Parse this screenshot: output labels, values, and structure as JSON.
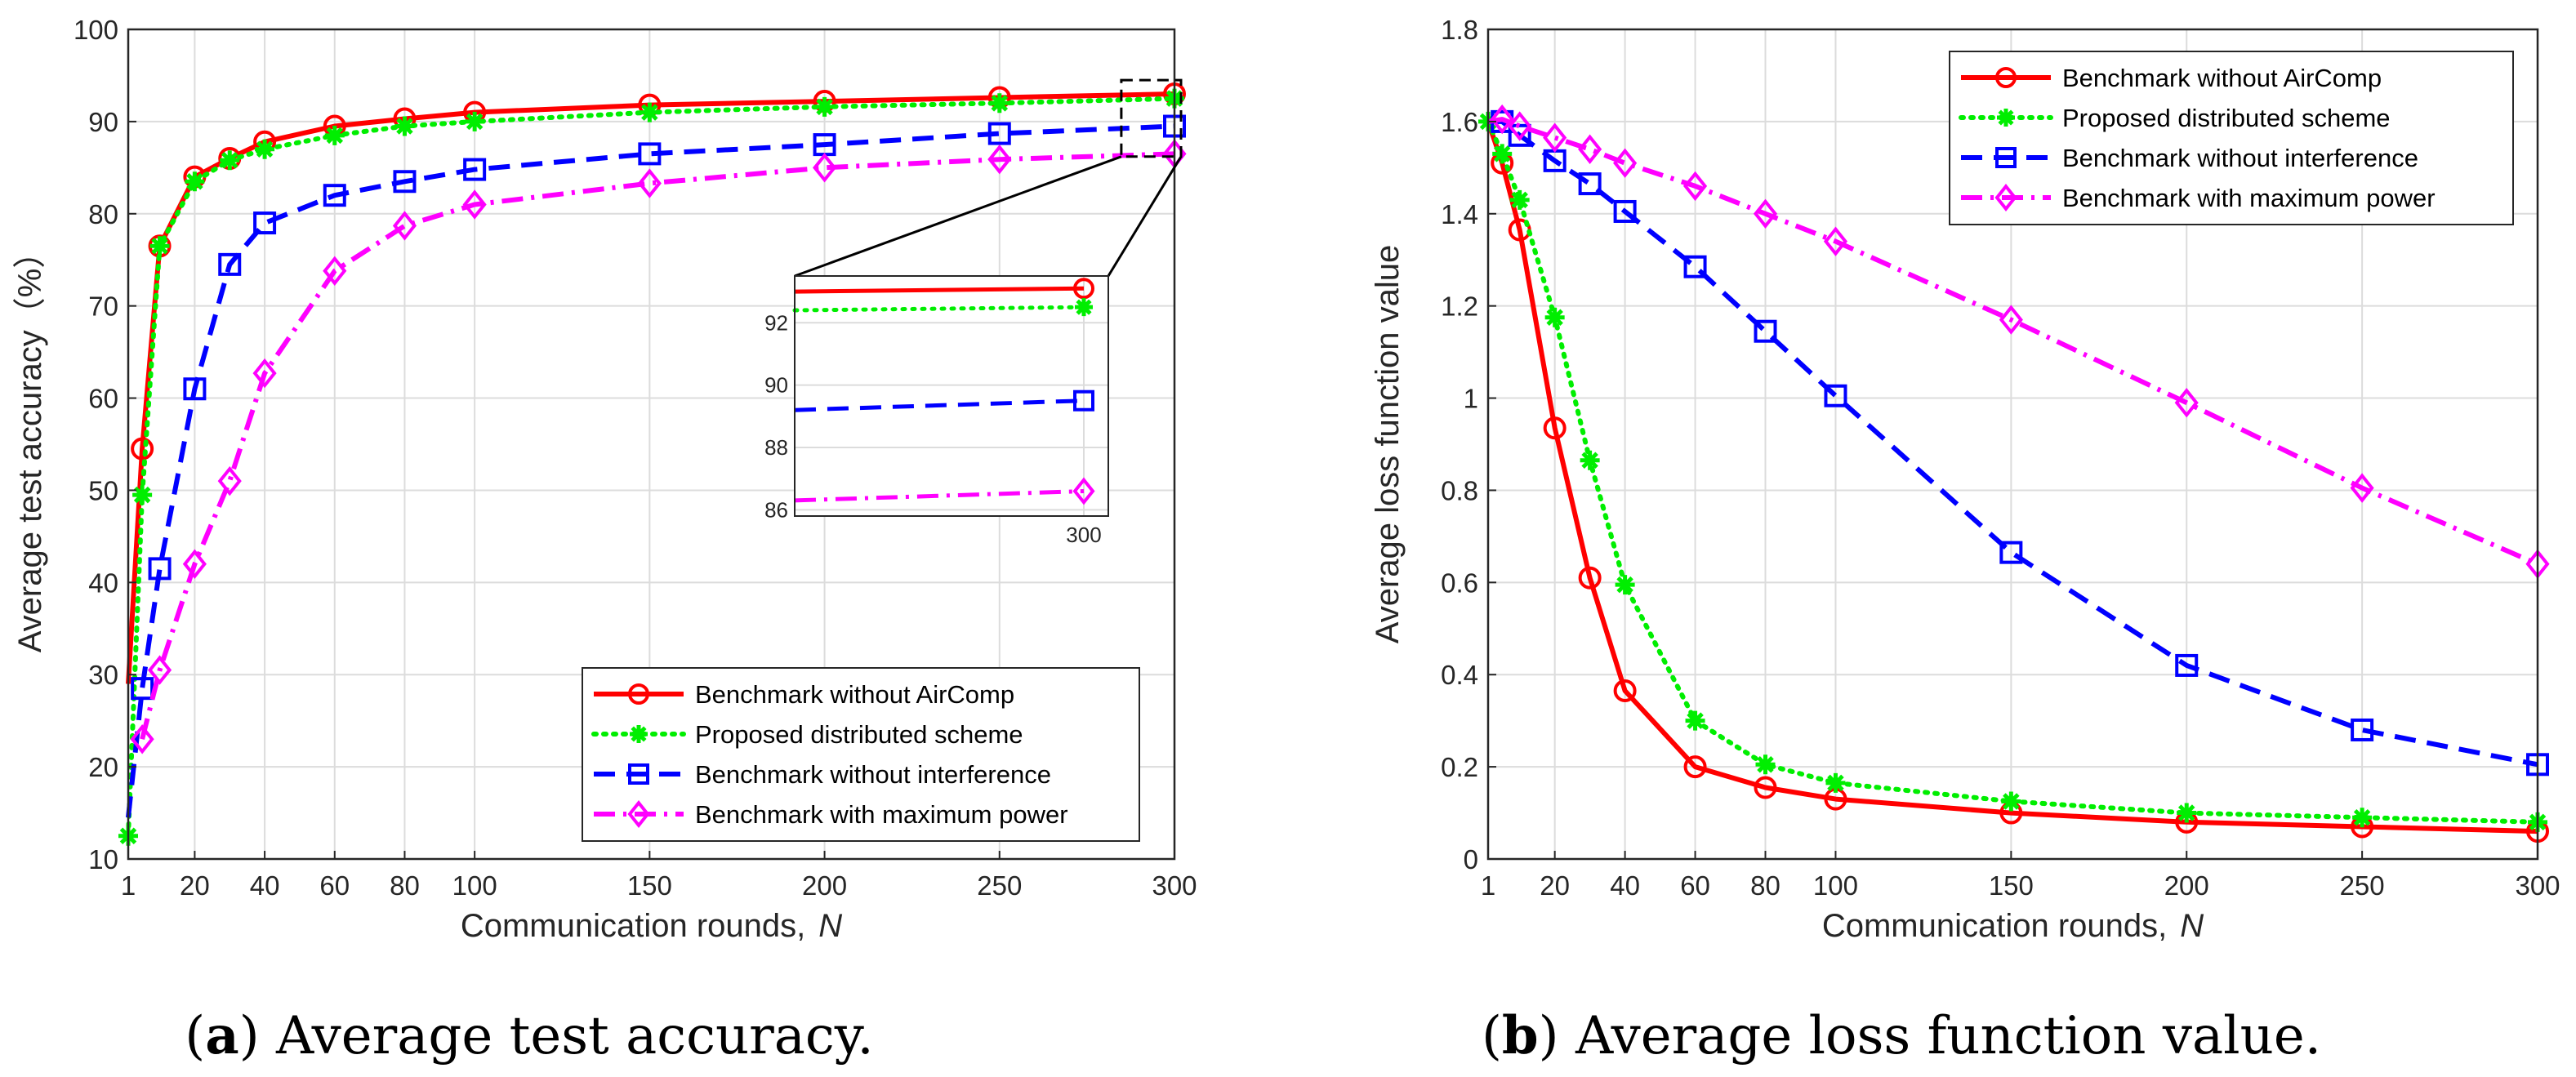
{
  "colors": {
    "red": "#ff0000",
    "green": "#00ee00",
    "blue": "#0000ff",
    "magenta": "#ff00ff"
  },
  "captions": [
    {
      "letter": "a",
      "text": " Average test accuracy."
    },
    {
      "letter": "b",
      "text": " Average loss function value."
    }
  ],
  "chart_data": [
    {
      "type": "line",
      "xlabel": "Communication rounds,",
      "xlabel_var": "N",
      "ylabel": "Average test accuracy（%）",
      "xlim": [
        1,
        300
      ],
      "ylim": [
        10,
        100
      ],
      "xticks": [
        1,
        20,
        40,
        60,
        80,
        100,
        150,
        200,
        250,
        300
      ],
      "yticks": [
        10,
        20,
        30,
        40,
        50,
        60,
        70,
        80,
        90,
        100
      ],
      "grid": true,
      "legend_position": "bottom-right",
      "series": [
        {
          "name": "Benchmark without AirComp",
          "color": "red",
          "dash": "solid",
          "marker": "circle",
          "x": [
            1,
            5,
            10,
            20,
            30,
            40,
            60,
            80,
            100,
            150,
            200,
            250,
            300
          ],
          "y": [
            29,
            54.5,
            76.5,
            84,
            86,
            87.8,
            89.5,
            90.3,
            91,
            91.8,
            92.2,
            92.6,
            93
          ]
        },
        {
          "name": "Proposed distributed scheme",
          "color": "green",
          "dash": "dot",
          "marker": "asterisk",
          "x": [
            1,
            5,
            10,
            20,
            30,
            40,
            60,
            80,
            100,
            150,
            200,
            250,
            300
          ],
          "y": [
            12.5,
            49.5,
            76.5,
            83.5,
            85.8,
            87,
            88.5,
            89.5,
            90,
            91,
            91.6,
            92,
            92.5
          ]
        },
        {
          "name": "Benchmark without interference",
          "color": "blue",
          "dash": "dash",
          "marker": "square",
          "x": [
            1,
            5,
            10,
            20,
            30,
            40,
            60,
            80,
            100,
            150,
            200,
            250,
            300
          ],
          "y": [
            14.5,
            28.5,
            41.5,
            61,
            74.5,
            79,
            82,
            83.5,
            84.8,
            86.5,
            87.5,
            88.7,
            89.5
          ]
        },
        {
          "name": "Benchmark with maximum power",
          "color": "magenta",
          "dash": "dashdot",
          "marker": "diamond",
          "x": [
            5,
            10,
            20,
            30,
            40,
            60,
            80,
            100,
            150,
            200,
            250,
            300
          ],
          "y": [
            23,
            30.5,
            42,
            51,
            62.7,
            73.8,
            78.7,
            81,
            83.3,
            85,
            85.9,
            86.5
          ]
        }
      ],
      "inset": {
        "x_domain": [
          275,
          300
        ],
        "ylim": [
          85.8,
          93.5
        ],
        "xticks": [
          300
        ],
        "yticks": [
          86,
          88,
          90,
          92
        ],
        "series": [
          {
            "color": "red",
            "dash": "solid",
            "marker": "circle",
            "x": [
              275,
              300
            ],
            "y": [
              93,
              93.1
            ]
          },
          {
            "color": "green",
            "dash": "dot",
            "marker": "asterisk",
            "x": [
              275,
              300
            ],
            "y": [
              92.4,
              92.5
            ]
          },
          {
            "color": "blue",
            "dash": "dash",
            "marker": "square",
            "x": [
              275,
              300
            ],
            "y": [
              89.2,
              89.5
            ]
          },
          {
            "color": "magenta",
            "dash": "dashdot",
            "marker": "diamond",
            "x": [
              275,
              300
            ],
            "y": [
              86.3,
              86.6
            ]
          }
        ]
      }
    },
    {
      "type": "line",
      "xlabel": "Communication rounds,",
      "xlabel_var": "N",
      "ylabel": "Average loss function value",
      "xlim": [
        1,
        300
      ],
      "ylim": [
        0,
        1.8
      ],
      "xticks": [
        1,
        20,
        40,
        60,
        80,
        100,
        150,
        200,
        250,
        300
      ],
      "yticks": [
        0,
        0.2,
        0.4,
        0.6,
        0.8,
        1,
        1.2,
        1.4,
        1.6,
        1.8
      ],
      "ytick_labels": [
        "0",
        "0.2",
        "0.4",
        "0.6",
        "0.8",
        "1",
        "1.2",
        "1.4",
        "1.6",
        "1.8"
      ],
      "grid": true,
      "legend_position": "top-right",
      "series": [
        {
          "name": "Benchmark without AirComp",
          "color": "red",
          "dash": "solid",
          "marker": "circle",
          "x": [
            1,
            5,
            10,
            20,
            30,
            40,
            60,
            80,
            100,
            150,
            200,
            250,
            300
          ],
          "y": [
            1.6,
            1.51,
            1.365,
            0.935,
            0.61,
            0.365,
            0.2,
            0.155,
            0.13,
            0.1,
            0.08,
            0.07,
            0.06
          ]
        },
        {
          "name": "Proposed distributed scheme",
          "color": "green",
          "dash": "dot",
          "marker": "asterisk",
          "x": [
            1,
            5,
            10,
            20,
            30,
            40,
            60,
            80,
            100,
            150,
            200,
            250,
            300
          ],
          "y": [
            1.6,
            1.53,
            1.43,
            1.175,
            0.865,
            0.595,
            0.3,
            0.205,
            0.165,
            0.125,
            0.1,
            0.09,
            0.08
          ]
        },
        {
          "name": "Benchmark without interference",
          "color": "blue",
          "dash": "dash",
          "marker": "square",
          "x": [
            1,
            5,
            10,
            20,
            30,
            40,
            60,
            80,
            100,
            150,
            200,
            250,
            300
          ],
          "y": [
            1.6,
            1.6,
            1.57,
            1.515,
            1.465,
            1.405,
            1.285,
            1.145,
            1.005,
            0.665,
            0.42,
            0.28,
            0.205
          ]
        },
        {
          "name": "Benchmark with maximum power",
          "color": "magenta",
          "dash": "dashdot",
          "marker": "diamond",
          "x": [
            1,
            5,
            10,
            20,
            30,
            40,
            60,
            80,
            100,
            150,
            200,
            250,
            300
          ],
          "y": [
            1.6,
            1.605,
            1.59,
            1.565,
            1.54,
            1.51,
            1.46,
            1.4,
            1.34,
            1.17,
            0.99,
            0.805,
            0.64
          ]
        }
      ]
    }
  ]
}
